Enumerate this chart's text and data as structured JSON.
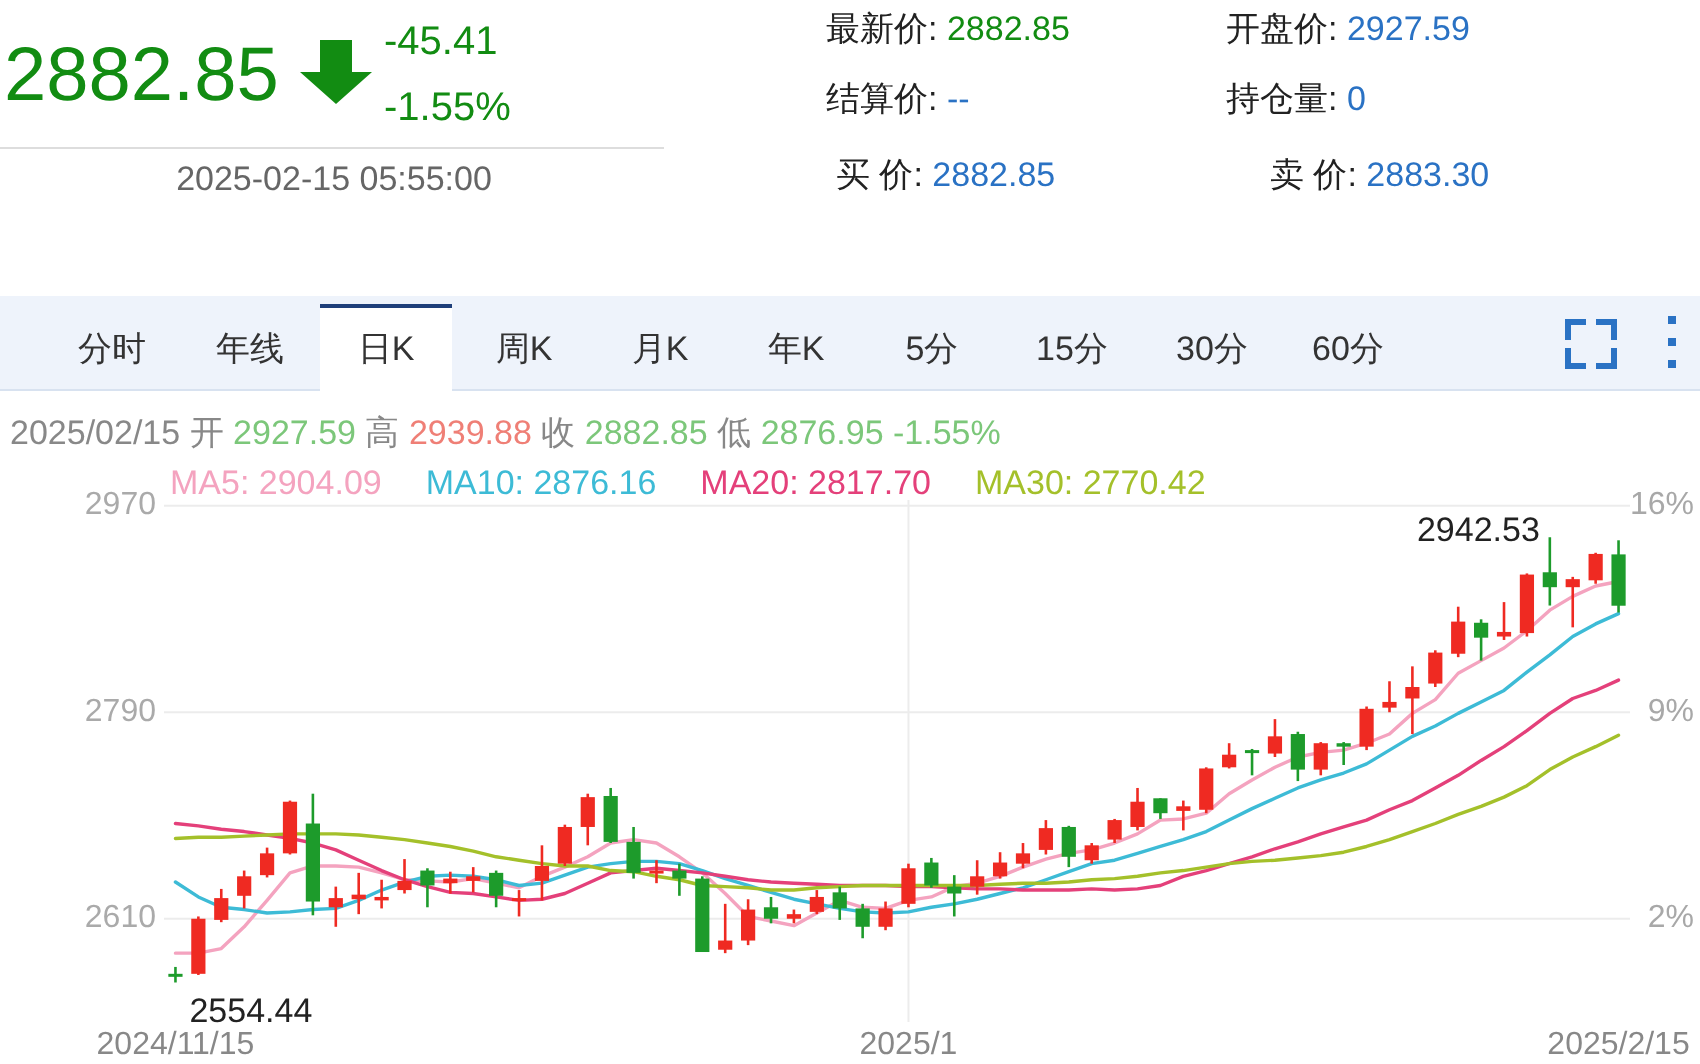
{
  "chart_data": [
    {
      "type": "other",
      "annotations": [
        "2882.85",
        "-45.41",
        "-1.55%",
        "2025-02-15 05:55:00",
        "最新价: 2882.85",
        "开盘价: 2927.59",
        "结算价: --",
        "持仓量: 0",
        "买 价: 2882.85",
        "卖 价: 2883.30",
        "分时",
        "年线",
        "日K",
        "周K",
        "月K",
        "年K",
        "5分",
        "15分",
        "30分",
        "60分"
      ]
    },
    {
      "type": "candlestick",
      "title": "2025/02/15 开 2927.59 高 2939.88 收 2882.85 低 2876.95 -1.55%",
      "categories": [
        "2024/11/15",
        null,
        null,
        null,
        null,
        null,
        null,
        null,
        null,
        null,
        null,
        null,
        null,
        null,
        null,
        null,
        null,
        null,
        null,
        null,
        null,
        null,
        null,
        null,
        null,
        null,
        null,
        null,
        null,
        null,
        null,
        null,
        "2025/1",
        null,
        null,
        null,
        null,
        null,
        null,
        null,
        null,
        null,
        null,
        null,
        null,
        null,
        null,
        null,
        null,
        null,
        null,
        null,
        null,
        null,
        null,
        null,
        null,
        null,
        null,
        null,
        null,
        null,
        null,
        "2025/2/15"
      ],
      "ohlc": [
        [
          2562,
          2568,
          2554.44,
          2560
        ],
        [
          2562,
          2612,
          2561,
          2610
        ],
        [
          2609,
          2636,
          2607,
          2628
        ],
        [
          2630,
          2652,
          2619,
          2647
        ],
        [
          2648,
          2672,
          2646,
          2667
        ],
        [
          2667,
          2713,
          2666,
          2712
        ],
        [
          2693,
          2719,
          2613,
          2625
        ],
        [
          2620,
          2638,
          2603,
          2628
        ],
        [
          2627,
          2650,
          2614,
          2631
        ],
        [
          2626,
          2644,
          2619,
          2629
        ],
        [
          2635,
          2662,
          2632,
          2643
        ],
        [
          2652,
          2654,
          2620,
          2639
        ],
        [
          2641,
          2651,
          2632,
          2645
        ],
        [
          2643,
          2655,
          2633,
          2647
        ],
        [
          2650,
          2652,
          2620,
          2630
        ],
        [
          2626,
          2635,
          2612,
          2628
        ],
        [
          2643,
          2674,
          2626,
          2656
        ],
        [
          2658,
          2692,
          2656,
          2690
        ],
        [
          2690,
          2719,
          2674,
          2716
        ],
        [
          2717,
          2724,
          2676,
          2677
        ],
        [
          2677,
          2690,
          2645,
          2650
        ],
        [
          2650,
          2661,
          2641,
          2652
        ],
        [
          2652,
          2658,
          2630,
          2645
        ],
        [
          2645,
          2647,
          2581,
          2581
        ],
        [
          2583,
          2623,
          2580,
          2591
        ],
        [
          2591,
          2627,
          2587,
          2618
        ],
        [
          2620,
          2629,
          2606,
          2610
        ],
        [
          2610,
          2618,
          2606,
          2614
        ],
        [
          2616,
          2635,
          2614,
          2629
        ],
        [
          2633,
          2638,
          2609,
          2619
        ],
        [
          2619,
          2623,
          2593,
          2603
        ],
        [
          2603,
          2625,
          2600,
          2619
        ],
        [
          2623,
          2658,
          2620,
          2654
        ],
        [
          2659,
          2663,
          2637,
          2639
        ],
        [
          2638,
          2648,
          2612,
          2632
        ],
        [
          2638,
          2661,
          2631,
          2647
        ],
        [
          2647,
          2668,
          2645,
          2659
        ],
        [
          2658,
          2676,
          2654,
          2667
        ],
        [
          2670,
          2696,
          2666,
          2689
        ],
        [
          2690,
          2691,
          2655,
          2664
        ],
        [
          2661,
          2676,
          2658,
          2674
        ],
        [
          2679,
          2697,
          2676,
          2696
        ],
        [
          2690,
          2724,
          2687,
          2712
        ],
        [
          2715,
          2715,
          2697,
          2702
        ],
        [
          2704,
          2713,
          2687,
          2708
        ],
        [
          2705,
          2742,
          2702,
          2741
        ],
        [
          2742,
          2763,
          2741,
          2753
        ],
        [
          2757,
          2758,
          2735,
          2755
        ],
        [
          2754,
          2784,
          2751,
          2769
        ],
        [
          2771,
          2773,
          2730,
          2740
        ],
        [
          2740,
          2764,
          2735,
          2763
        ],
        [
          2763,
          2764,
          2744,
          2760
        ],
        [
          2760,
          2795,
          2757,
          2793
        ],
        [
          2794,
          2817,
          2790,
          2799
        ],
        [
          2802,
          2830,
          2771,
          2812
        ],
        [
          2815,
          2844,
          2812,
          2842
        ],
        [
          2841,
          2882,
          2838,
          2869
        ],
        [
          2868,
          2871,
          2835,
          2855
        ],
        [
          2856,
          2886,
          2853,
          2860
        ],
        [
          2859,
          2911,
          2856,
          2910
        ],
        [
          2912,
          2942.53,
          2883,
          2899
        ],
        [
          2899,
          2908,
          2864,
          2906
        ],
        [
          2905,
          2929,
          2902,
          2928
        ],
        [
          2927.59,
          2939.88,
          2876.95,
          2882.85
        ]
      ],
      "colors": [
        "#1d9b2b",
        "#ef2a22",
        "#ef2a22",
        "#ef2a22",
        "#ef2a22",
        "#ef2a22",
        "#1d9b2b",
        "#ef2a22",
        "#ef2a22",
        "#ef2a22",
        "#ef2a22",
        "#1d9b2b",
        "#ef2a22",
        "#ef2a22",
        "#1d9b2b",
        "#ef2a22",
        "#ef2a22",
        "#ef2a22",
        "#ef2a22",
        "#1d9b2b",
        "#1d9b2b",
        "#ef2a22",
        "#1d9b2b",
        "#1d9b2b",
        "#ef2a22",
        "#ef2a22",
        "#1d9b2b",
        "#ef2a22",
        "#ef2a22",
        "#1d9b2b",
        "#1d9b2b",
        "#ef2a22",
        "#ef2a22",
        "#1d9b2b",
        "#1d9b2b",
        "#ef2a22",
        "#ef2a22",
        "#ef2a22",
        "#ef2a22",
        "#1d9b2b",
        "#ef2a22",
        "#ef2a22",
        "#ef2a22",
        "#1d9b2b",
        "#ef2a22",
        "#ef2a22",
        "#ef2a22",
        "#1d9b2b",
        "#ef2a22",
        "#1d9b2b",
        "#ef2a22",
        "#1d9b2b",
        "#ef2a22",
        "#ef2a22",
        "#ef2a22",
        "#ef2a22",
        "#ef2a22",
        "#1d9b2b",
        "#ef2a22",
        "#ef2a22",
        "#1d9b2b",
        "#ef2a22",
        "#ef2a22",
        "#1d9b2b"
      ],
      "series": [
        {
          "type": "line",
          "name": "MA5: 2904.09",
          "color": "#f4a3bf",
          "values": [
            2580,
            2580,
            2584,
            2603,
            2626,
            2650,
            2656,
            2656,
            2655,
            2650,
            2644,
            2643,
            2642,
            2645,
            2641,
            2637,
            2647,
            2655,
            2664,
            2676,
            2679,
            2676,
            2664,
            2650,
            2632,
            2612,
            2608,
            2604,
            2615,
            2626,
            2620,
            2619,
            2626,
            2629,
            2638,
            2641,
            2647,
            2655,
            2662,
            2667,
            2670,
            2676,
            2684,
            2696,
            2697,
            2702,
            2719,
            2731,
            2742,
            2751,
            2755,
            2757,
            2763,
            2771,
            2789,
            2801,
            2824,
            2835,
            2846,
            2861,
            2879,
            2891,
            2900,
            2904
          ]
        },
        {
          "type": "line",
          "name": "MA10: 2876.16",
          "color": "#3dbbd6",
          "values": [
            2642,
            2629,
            2620,
            2618,
            2615,
            2616,
            2618,
            2619,
            2626,
            2635,
            2642,
            2647,
            2648,
            2647,
            2644,
            2639,
            2641,
            2648,
            2655,
            2658,
            2660,
            2660,
            2658,
            2652,
            2645,
            2639,
            2633,
            2627,
            2623,
            2619,
            2616,
            2615,
            2616,
            2620,
            2623,
            2627,
            2632,
            2637,
            2644,
            2651,
            2658,
            2661,
            2667,
            2673,
            2679,
            2686,
            2696,
            2706,
            2715,
            2724,
            2731,
            2737,
            2745,
            2757,
            2769,
            2778,
            2789,
            2799,
            2809,
            2825,
            2840,
            2856,
            2867,
            2876
          ]
        },
        {
          "type": "line",
          "name": "MA20: 2817.70",
          "color": "#e4407a",
          "values": [
            2693,
            2691,
            2688,
            2686,
            2683,
            2680,
            2676,
            2670,
            2661,
            2652,
            2644,
            2638,
            2633,
            2632,
            2629,
            2626,
            2627,
            2632,
            2641,
            2650,
            2652,
            2654,
            2652,
            2650,
            2647,
            2644,
            2642,
            2641,
            2640,
            2639,
            2639,
            2639,
            2638,
            2638,
            2637,
            2636,
            2636,
            2635,
            2635,
            2635,
            2636,
            2635,
            2636,
            2639,
            2647,
            2652,
            2658,
            2664,
            2671,
            2677,
            2684,
            2690,
            2696,
            2705,
            2713,
            2724,
            2735,
            2748,
            2760,
            2774,
            2789,
            2802,
            2809,
            2818
          ]
        },
        {
          "type": "line",
          "name": "MA30: 2770.42",
          "color": "#a4c02a",
          "values": [
            2680,
            2681,
            2681,
            2682,
            2683,
            2684,
            2684,
            2684,
            2683,
            2681,
            2679,
            2676,
            2673,
            2669,
            2664,
            2661,
            2658,
            2656,
            2656,
            2652,
            2651,
            2647,
            2644,
            2639,
            2638,
            2637,
            2635,
            2635,
            2637,
            2638,
            2639,
            2639,
            2639,
            2639,
            2639,
            2639,
            2640,
            2641,
            2641,
            2642,
            2644,
            2645,
            2647,
            2650,
            2652,
            2655,
            2658,
            2660,
            2661,
            2663,
            2665,
            2668,
            2673,
            2679,
            2686,
            2693,
            2701,
            2708,
            2716,
            2726,
            2740,
            2751,
            2760,
            2770
          ]
        }
      ],
      "ylim": [
        2520,
        2975
      ],
      "yticks": [
        2610,
        2790,
        2970
      ],
      "y2lim": [
        -1.5,
        16.19
      ],
      "y2ticks": [
        {
          "value": 2,
          "label": "2%"
        },
        {
          "value": 9,
          "label": "9%"
        },
        {
          "value": 16,
          "label": "16%"
        }
      ],
      "grid": true,
      "legend": "top",
      "annotations": [
        "2942.53",
        "2554.44"
      ]
    }
  ]
}
